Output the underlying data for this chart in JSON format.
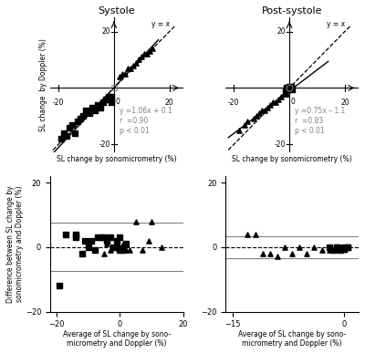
{
  "systole_squares_x": [
    -19,
    -18,
    -17,
    -16,
    -15,
    -14,
    -13,
    -12,
    -11,
    -10,
    -9,
    -8,
    -7,
    -6,
    -5,
    -4,
    -3,
    -2,
    -1,
    -1
  ],
  "systole_squares_y": [
    -18,
    -16,
    -17,
    -14,
    -13,
    -16,
    -12,
    -11,
    -10,
    -8,
    -9,
    -7,
    -8,
    -6,
    -7,
    -5,
    -4,
    -3,
    -3,
    -5
  ],
  "systole_triangles_x": [
    2,
    3,
    4,
    5,
    6,
    7,
    8,
    9,
    10,
    11,
    12,
    13,
    14
  ],
  "systole_triangles_y": [
    4,
    5,
    5,
    7,
    7,
    8,
    9,
    10,
    11,
    12,
    12,
    13,
    14
  ],
  "systole_reg_slope": 1.06,
  "systole_reg_intercept": 0.1,
  "systole_r": "0.90",
  "systole_p": "< 0.01",
  "postsystole_squares_x": [
    -1,
    -0.5,
    0,
    0.5,
    1,
    -1.5,
    0
  ],
  "postsystole_squares_y": [
    0,
    -0.5,
    0,
    0.3,
    -0.5,
    -1,
    0.5
  ],
  "postsystole_triangles_x": [
    -18,
    -16,
    -15,
    -13,
    -12,
    -11,
    -10,
    -9,
    -8,
    -7,
    -6,
    -5,
    -4,
    -3,
    -2,
    -1
  ],
  "postsystole_triangles_y": [
    -15,
    -13,
    -12,
    -11,
    -10,
    -9,
    -8,
    -8,
    -7,
    -6,
    -5,
    -5,
    -4,
    -3,
    -2,
    -2
  ],
  "postsystole_reg_slope": 0.75,
  "postsystole_reg_intercept": -1.1,
  "postsystole_r": "0.83",
  "postsystole_p": "< 0.01",
  "ba_sys_sq_x": [
    -19,
    -17,
    -14,
    -14,
    -12,
    -11,
    -10,
    -9,
    -8,
    -7,
    -6,
    -5,
    -4,
    -3,
    -2,
    -1,
    -1,
    0,
    0,
    1,
    2
  ],
  "ba_sys_sq_y": [
    -12,
    4,
    3,
    4,
    -2,
    2,
    0,
    2,
    -1,
    3,
    3,
    3,
    2,
    3,
    0,
    2,
    0,
    3,
    -1,
    -1,
    1
  ],
  "ba_sys_tr_x": [
    -5,
    -4,
    -3,
    -1,
    0,
    1,
    2,
    3,
    5,
    7,
    9,
    10,
    13
  ],
  "ba_sys_tr_y": [
    -2,
    1,
    -1,
    0,
    0,
    1,
    -1,
    -1,
    8,
    -1,
    2,
    8,
    0
  ],
  "ba_sys_mean": 0.0,
  "ba_sys_upper": 7.5,
  "ba_sys_lower": -7.5,
  "ba_post_sq_x": [
    -1,
    -0.5,
    0,
    0,
    0.5,
    -0.5,
    -1.5,
    -2,
    -1,
    0,
    0.5
  ],
  "ba_post_sq_y": [
    0,
    -1,
    0,
    -0.5,
    0,
    -0.5,
    -1,
    0,
    0,
    -0.5,
    0
  ],
  "ba_post_tr_x": [
    -13,
    -12,
    -11,
    -10,
    -9,
    -8,
    -7,
    -6,
    -5,
    -4,
    -3,
    -2,
    -2,
    -1,
    -1,
    -0.5,
    -0.5,
    0
  ],
  "ba_post_tr_y": [
    4,
    4,
    -2,
    -2,
    -3,
    0,
    -2,
    0,
    -2,
    0,
    -1,
    -1,
    0,
    -1,
    0,
    -1,
    0,
    0
  ],
  "ba_post_mean": 0.0,
  "ba_post_upper": 3.5,
  "ba_post_lower": -3.5,
  "scatter_xlim": [
    -24,
    24
  ],
  "scatter_ylim": [
    -24,
    24
  ],
  "scatter_ticks": [
    -20,
    0,
    20
  ],
  "ba_sys_xlim": [
    -22,
    20
  ],
  "ba_sys_ylim": [
    -20,
    22
  ],
  "ba_sys_yticks": [
    -20,
    0,
    20
  ],
  "ba_sys_xticks": [
    -20,
    0,
    20
  ],
  "ba_post_xlim": [
    -16,
    2
  ],
  "ba_post_ylim": [
    -20,
    22
  ],
  "ba_post_yticks": [
    -20,
    0,
    20
  ],
  "ba_post_xticks": [
    -15,
    0
  ],
  "marker_size": 14,
  "marker_color": "#000000",
  "title_systole": "Systole",
  "title_postsystole": "Post-systole",
  "ylabel_top": "SL change  by Doppler (%)",
  "xlabel_top": "SL change by sonomicrometry (%)",
  "ylabel_bottom": "Difference between SL change by\nsonomicrometry and Doppler (%)",
  "xlabel_bottom": "Average of SL change by sono-\nmicrometry and Doppler (%)"
}
